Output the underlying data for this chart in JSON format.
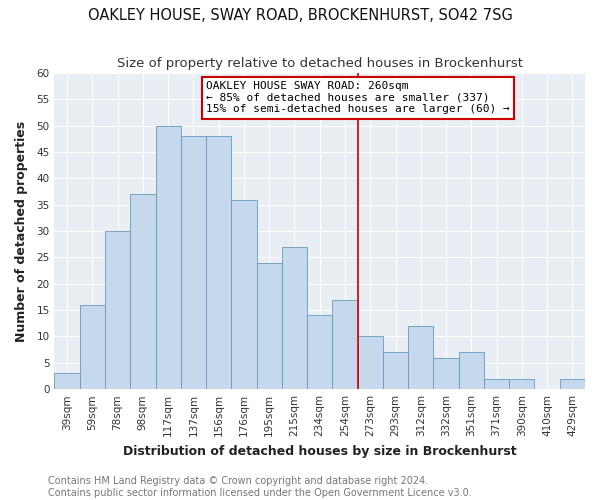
{
  "title": "OAKLEY HOUSE, SWAY ROAD, BROCKENHURST, SO42 7SG",
  "subtitle": "Size of property relative to detached houses in Brockenhurst",
  "xlabel": "Distribution of detached houses by size in Brockenhurst",
  "ylabel": "Number of detached properties",
  "bar_labels": [
    "39sqm",
    "59sqm",
    "78sqm",
    "98sqm",
    "117sqm",
    "137sqm",
    "156sqm",
    "176sqm",
    "195sqm",
    "215sqm",
    "234sqm",
    "254sqm",
    "273sqm",
    "293sqm",
    "312sqm",
    "332sqm",
    "351sqm",
    "371sqm",
    "390sqm",
    "410sqm",
    "429sqm"
  ],
  "bar_values": [
    3,
    16,
    30,
    37,
    50,
    48,
    48,
    36,
    24,
    27,
    14,
    17,
    10,
    7,
    12,
    6,
    7,
    2,
    2,
    0,
    2
  ],
  "bar_color": "#c6d9ec",
  "bar_edge_color": "#6699bb",
  "vline_x": 11.5,
  "vline_color": "#cc0000",
  "annotation_text": "OAKLEY HOUSE SWAY ROAD: 260sqm\n← 85% of detached houses are smaller (337)\n15% of semi-detached houses are larger (60) →",
  "annotation_box_color": "#ffffff",
  "annotation_box_edge": "#cc0000",
  "ylim": [
    0,
    60
  ],
  "yticks": [
    0,
    5,
    10,
    15,
    20,
    25,
    30,
    35,
    40,
    45,
    50,
    55,
    60
  ],
  "footer_line1": "Contains HM Land Registry data © Crown copyright and database right 2024.",
  "footer_line2": "Contains public sector information licensed under the Open Government Licence v3.0.",
  "fig_bg_color": "#ffffff",
  "plot_bg_color": "#e8eef4",
  "title_fontsize": 10.5,
  "subtitle_fontsize": 9.5,
  "axis_label_fontsize": 9,
  "tick_fontsize": 7.5,
  "annotation_fontsize": 8,
  "footer_fontsize": 7
}
